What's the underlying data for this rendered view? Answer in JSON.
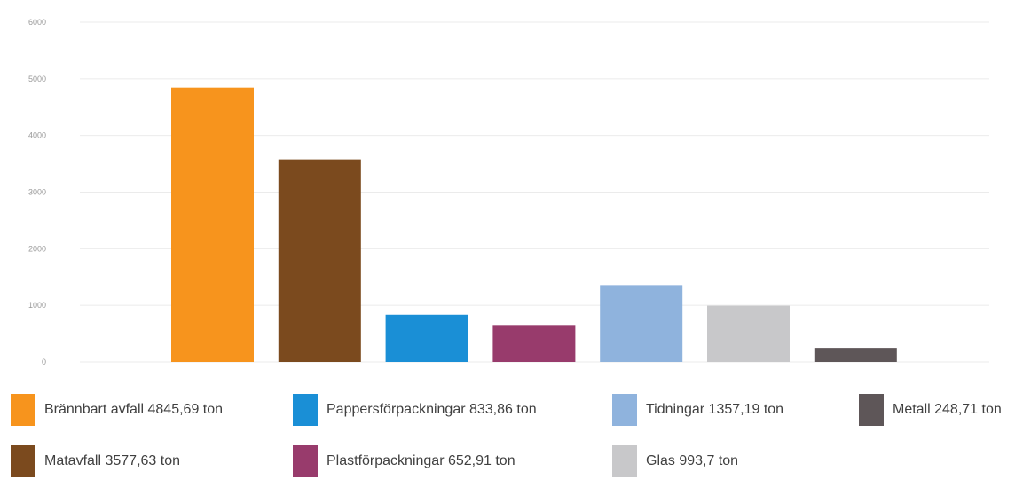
{
  "chart_data": {
    "type": "bar",
    "categories": [
      "Brännbart avfall",
      "Matavfall",
      "Pappersförpackningar",
      "Plastförpackningar",
      "Tidningar",
      "Glas",
      "Metall"
    ],
    "values": [
      4845.69,
      3577.63,
      833.86,
      652.91,
      1357.19,
      993.7,
      248.71
    ],
    "colors": [
      "#f7941d",
      "#7b4a1e",
      "#1a8fd6",
      "#983b6c",
      "#8fb3dd",
      "#c8c8ca",
      "#5e5658"
    ],
    "ylim": [
      0,
      6000
    ],
    "yticks": [
      "0",
      "1000",
      "2000",
      "3000",
      "4000",
      "5000",
      "6000"
    ],
    "grid": true,
    "legend_position": "bottom",
    "legend": [
      {
        "label": "Brännbart avfall 4845,69 ton",
        "color": "#f7941d"
      },
      {
        "label": "Matavfall 3577,63 ton",
        "color": "#7b4a1e"
      },
      {
        "label": "Pappersförpackningar 833,86 ton",
        "color": "#1a8fd6"
      },
      {
        "label": "Plastförpackningar 652,91 ton",
        "color": "#983b6c"
      },
      {
        "label": "Tidningar 1357,19 ton",
        "color": "#8fb3dd"
      },
      {
        "label": "Glas 993,7 ton",
        "color": "#c8c8ca"
      },
      {
        "label": "Metall 248,71 ton",
        "color": "#5e5658"
      }
    ]
  }
}
